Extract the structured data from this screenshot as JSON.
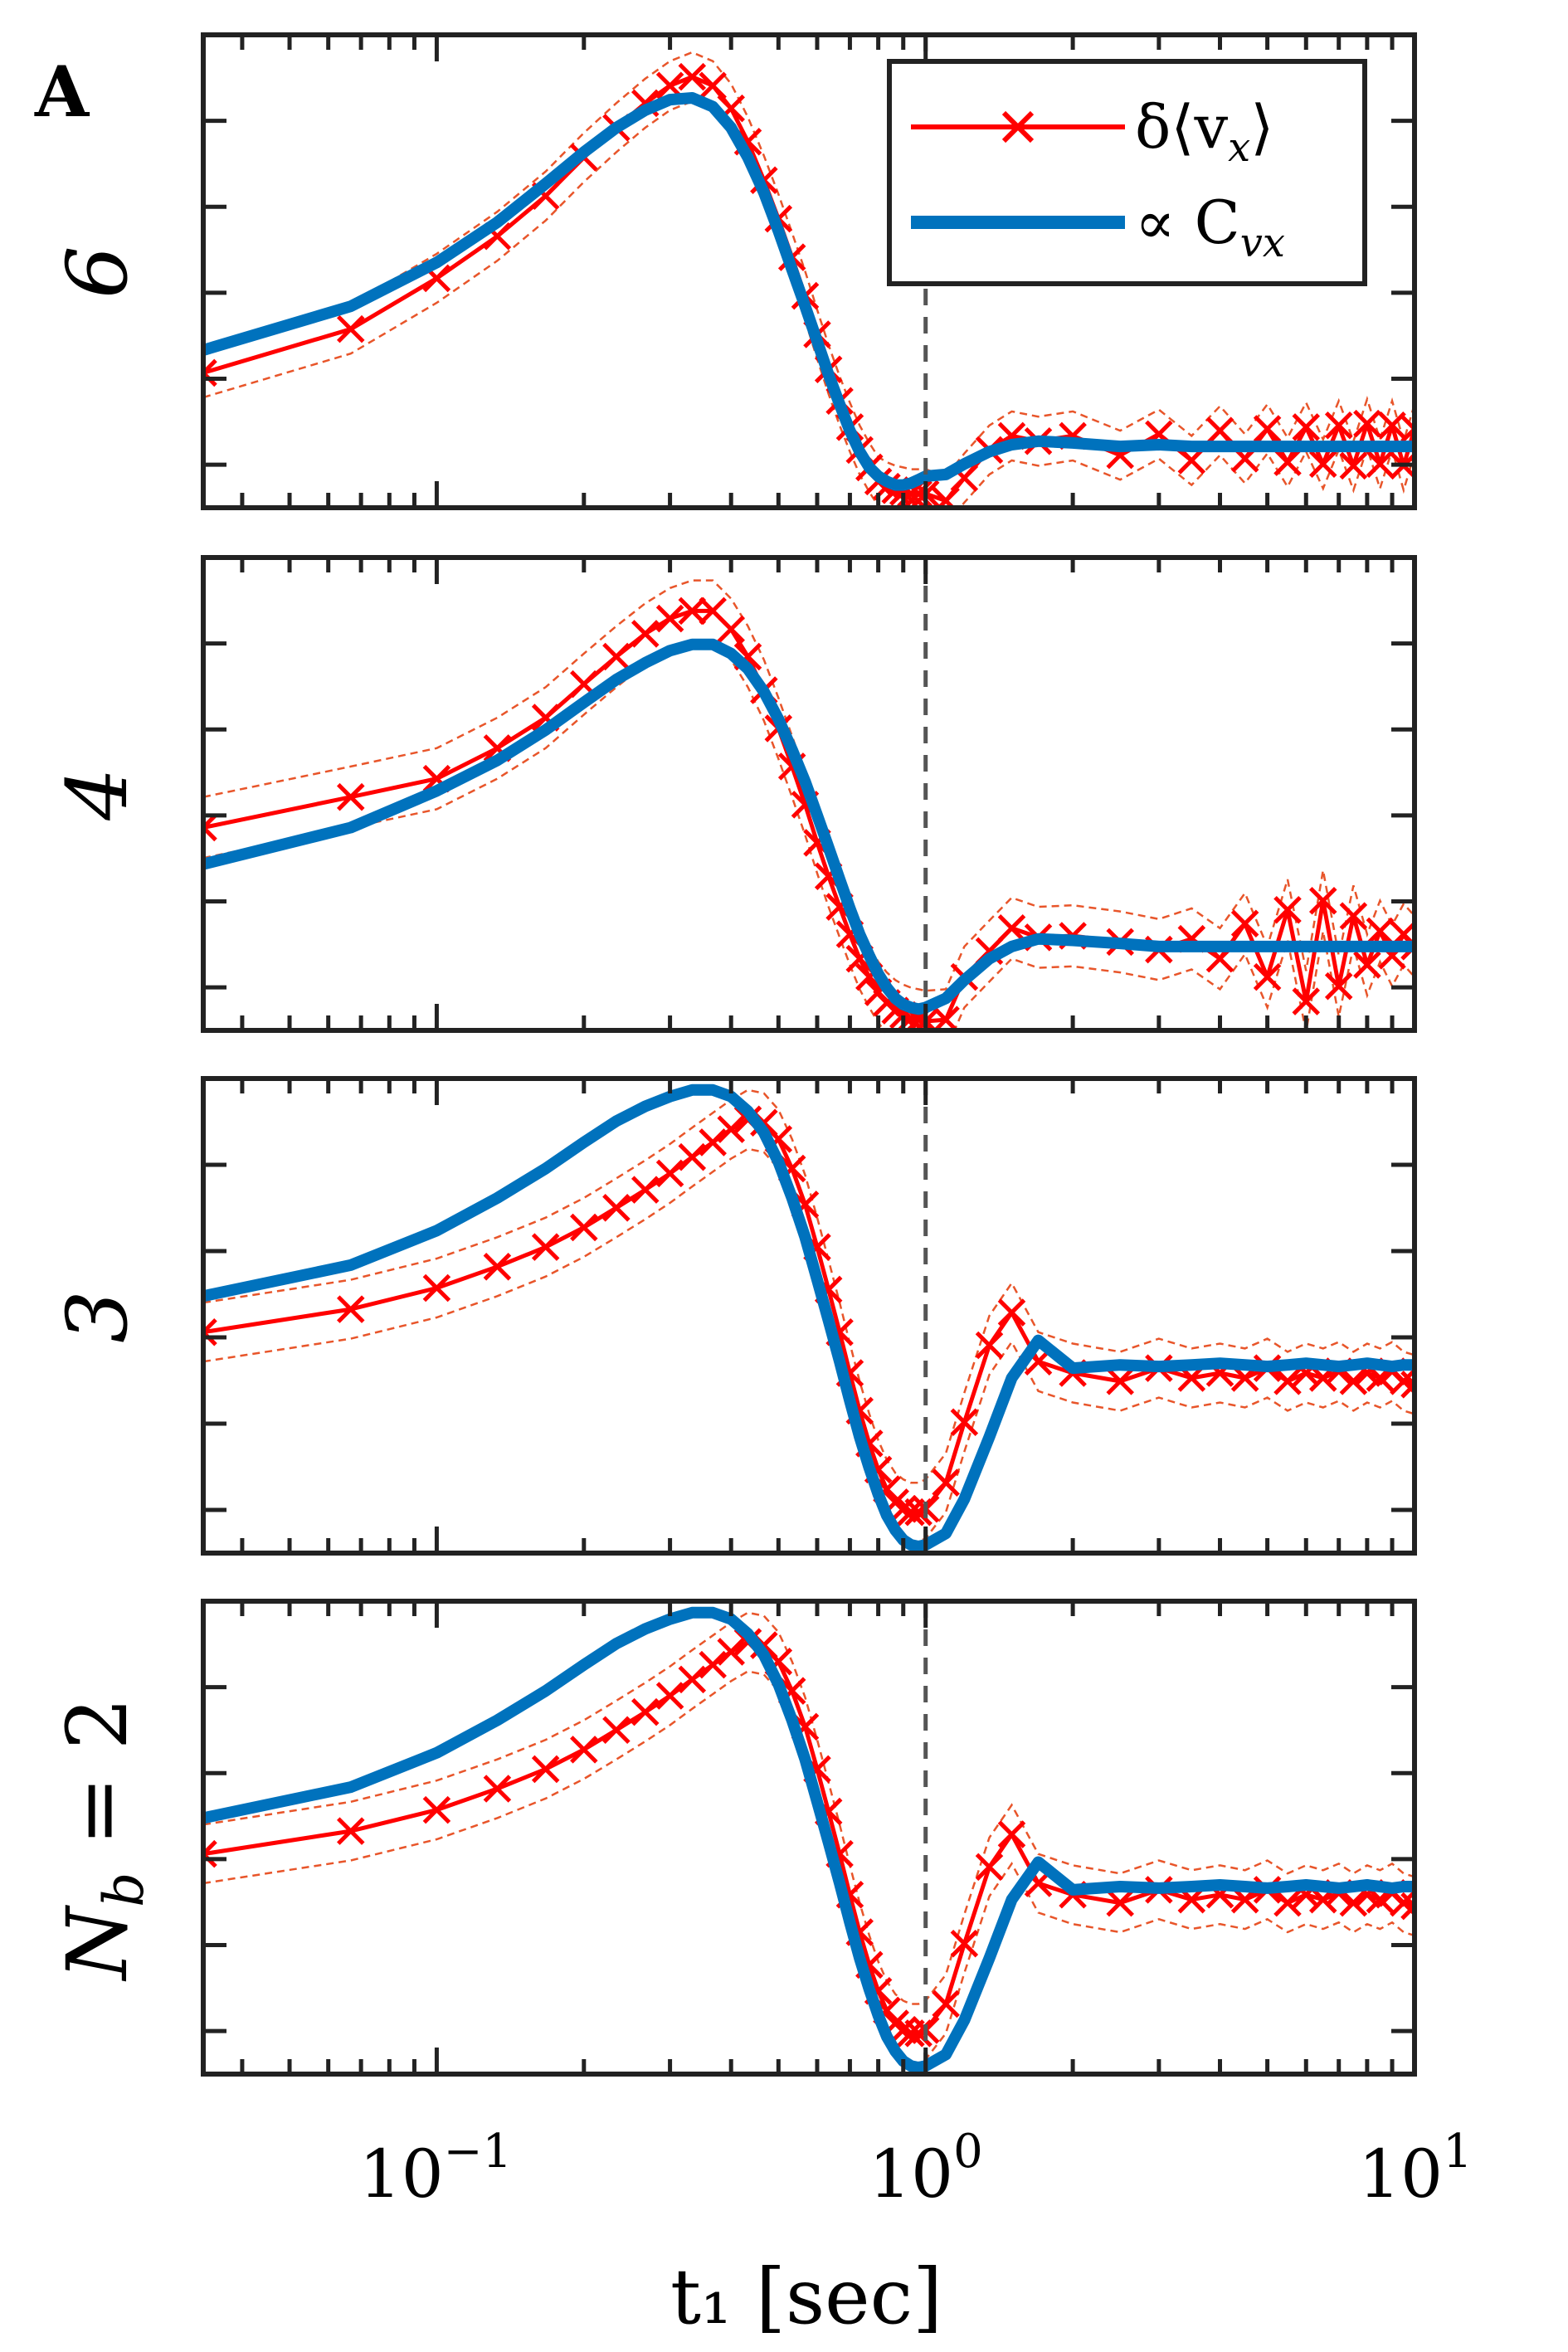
{
  "figure": {
    "panel_label": "A"
  },
  "chart_data": {
    "type": "line",
    "title": "",
    "xscale": "log",
    "xlim": [
      0.0333,
      10
    ],
    "xlabel": "t₁ [sec]",
    "xticks": [
      {
        "value": 0.1,
        "base": "10",
        "exp": "−1"
      },
      {
        "value": 1,
        "base": "10",
        "exp": "0"
      },
      {
        "value": 10,
        "base": "10",
        "exp": "1"
      }
    ],
    "vline_x": 1,
    "legend": {
      "location": "top-right of top panel",
      "entries": [
        {
          "name": "δ⟨v_x⟩",
          "sym": "δ⟨v",
          "sub": "x",
          "tail": "⟩",
          "color": "#ff0000",
          "marker": "x"
        },
        {
          "name": "∝ C_vx",
          "sym": "∝ C",
          "sub": "vx",
          "tail": "",
          "color": "#0072bd",
          "marker": ""
        }
      ]
    },
    "colors": {
      "measured": "#ff0000",
      "correlation": "#0072bd",
      "band": "#e8552a",
      "vline": "#555555"
    },
    "shared_x": [
      0.0333,
      0.0667,
      0.1,
      0.133,
      0.167,
      0.2,
      0.233,
      0.267,
      0.3,
      0.333,
      0.367,
      0.4,
      0.433,
      0.467,
      0.5,
      0.533,
      0.567,
      0.6,
      0.633,
      0.667,
      0.7,
      0.733,
      0.767,
      0.8,
      0.833,
      0.867,
      0.9,
      0.933,
      0.967,
      1.0,
      1.1,
      1.2,
      1.35,
      1.5,
      1.7,
      2.0,
      2.5,
      3.0,
      3.5,
      4.0,
      4.5,
      5.0,
      5.5,
      6.0,
      6.5,
      7.0,
      7.5,
      8.0,
      8.5,
      9.0,
      9.5,
      10.0
    ],
    "series": [
      {
        "name": "6",
        "label_prefix": "",
        "label_var": "6",
        "label_sub": "",
        "label_eq": "",
        "ylim": [
          -0.35,
          2.35
        ],
        "measured": [
          0.42,
          0.67,
          0.96,
          1.2,
          1.43,
          1.65,
          1.82,
          1.96,
          2.06,
          2.11,
          2.06,
          1.93,
          1.74,
          1.52,
          1.3,
          1.08,
          0.86,
          0.64,
          0.44,
          0.26,
          0.11,
          -0.02,
          -0.12,
          -0.2,
          -0.23,
          -0.25,
          -0.26,
          -0.27,
          -0.27,
          -0.27,
          -0.31,
          -0.18,
          -0.02,
          0.06,
          0.03,
          0.06,
          -0.05,
          0.07,
          -0.08,
          0.09,
          -0.07,
          0.1,
          -0.09,
          0.11,
          -0.1,
          0.12,
          -0.11,
          0.13,
          -0.1,
          0.12,
          -0.11,
          0.1
        ],
        "correlation": [
          0.55,
          0.8,
          1.05,
          1.28,
          1.5,
          1.68,
          1.82,
          1.92,
          1.98,
          1.99,
          1.94,
          1.82,
          1.65,
          1.45,
          1.23,
          1.01,
          0.8,
          0.6,
          0.41,
          0.24,
          0.09,
          -0.03,
          -0.12,
          -0.17,
          -0.2,
          -0.22,
          -0.22,
          -0.21,
          -0.19,
          -0.17,
          -0.16,
          -0.1,
          -0.03,
          0.01,
          0.03,
          0.02,
          0.0,
          0.01,
          0.0,
          0.0,
          0.0,
          0.0,
          0.0,
          0.0,
          0.0,
          0.0,
          0.0,
          0.0,
          0.0,
          0.0,
          0.0,
          0.0
        ],
        "band_halfwidth": 0.14
      },
      {
        "name": "4",
        "label_prefix": "",
        "label_var": "4",
        "label_sub": "",
        "label_eq": "",
        "ylim": [
          -0.55,
          2.55
        ],
        "measured": [
          0.78,
          0.98,
          1.1,
          1.3,
          1.5,
          1.72,
          1.9,
          2.05,
          2.15,
          2.2,
          2.2,
          2.08,
          1.9,
          1.68,
          1.43,
          1.18,
          0.93,
          0.68,
          0.46,
          0.26,
          0.08,
          -0.08,
          -0.2,
          -0.3,
          -0.37,
          -0.42,
          -0.45,
          -0.47,
          -0.48,
          -0.49,
          -0.48,
          -0.2,
          -0.03,
          0.12,
          0.06,
          0.07,
          0.03,
          -0.02,
          0.05,
          -0.08,
          0.15,
          -0.2,
          0.24,
          -0.36,
          0.3,
          -0.26,
          0.2,
          -0.12,
          0.1,
          -0.06,
          0.08,
          0.0
        ],
        "correlation": [
          0.54,
          0.78,
          1.02,
          1.22,
          1.42,
          1.6,
          1.75,
          1.86,
          1.94,
          1.98,
          1.98,
          1.92,
          1.82,
          1.67,
          1.49,
          1.29,
          1.08,
          0.86,
          0.65,
          0.44,
          0.25,
          0.08,
          -0.06,
          -0.18,
          -0.27,
          -0.34,
          -0.38,
          -0.4,
          -0.41,
          -0.4,
          -0.34,
          -0.22,
          -0.08,
          0.0,
          0.05,
          0.04,
          0.02,
          0.0,
          0.0,
          0.0,
          0.0,
          0.0,
          0.0,
          0.0,
          0.0,
          0.0,
          0.0,
          0.0,
          0.0,
          0.0,
          0.0,
          0.0
        ],
        "band_halfwidth": 0.2
      },
      {
        "name": "3",
        "label_prefix": "",
        "label_var": "3",
        "label_sub": "",
        "label_eq": "",
        "ylim": [
          -1.15,
          1.75
        ],
        "measured": [
          0.2,
          0.34,
          0.47,
          0.6,
          0.72,
          0.84,
          0.96,
          1.07,
          1.17,
          1.27,
          1.36,
          1.44,
          1.5,
          1.48,
          1.38,
          1.2,
          0.98,
          0.72,
          0.46,
          0.2,
          -0.05,
          -0.28,
          -0.48,
          -0.64,
          -0.76,
          -0.84,
          -0.88,
          -0.9,
          -0.9,
          -0.88,
          -0.72,
          -0.35,
          0.12,
          0.32,
          0.02,
          -0.05,
          -0.1,
          -0.02,
          -0.08,
          -0.05,
          -0.08,
          -0.02,
          -0.1,
          -0.05,
          -0.08,
          -0.04,
          -0.1,
          -0.05,
          -0.08,
          -0.04,
          -0.1,
          -0.12
        ],
        "correlation": [
          0.42,
          0.61,
          0.82,
          1.02,
          1.2,
          1.36,
          1.49,
          1.58,
          1.64,
          1.68,
          1.68,
          1.64,
          1.55,
          1.42,
          1.24,
          1.02,
          0.78,
          0.52,
          0.27,
          0.02,
          -0.22,
          -0.44,
          -0.63,
          -0.79,
          -0.92,
          -1.01,
          -1.07,
          -1.1,
          -1.11,
          -1.1,
          -1.03,
          -0.82,
          -0.44,
          -0.08,
          0.15,
          -0.02,
          0.0,
          -0.01,
          0.0,
          0.01,
          0.0,
          -0.01,
          0.0,
          0.01,
          0.0,
          -0.01,
          0.0,
          0.01,
          0.0,
          -0.01,
          0.0,
          0.0
        ],
        "band_halfwidth": 0.18
      },
      {
        "name": "N_b = 2",
        "label_prefix": "",
        "label_var": "N",
        "label_sub": "b",
        "label_eq": " = 2",
        "ylim": [
          -1.15,
          1.75
        ],
        "measured": [
          0.2,
          0.34,
          0.47,
          0.6,
          0.72,
          0.84,
          0.96,
          1.07,
          1.17,
          1.27,
          1.36,
          1.44,
          1.5,
          1.48,
          1.38,
          1.2,
          0.98,
          0.72,
          0.46,
          0.2,
          -0.05,
          -0.28,
          -0.48,
          -0.64,
          -0.76,
          -0.84,
          -0.88,
          -0.9,
          -0.9,
          -0.88,
          -0.72,
          -0.35,
          0.12,
          0.32,
          0.02,
          -0.05,
          -0.1,
          -0.02,
          -0.08,
          -0.05,
          -0.08,
          -0.02,
          -0.1,
          -0.05,
          -0.08,
          -0.04,
          -0.1,
          -0.05,
          -0.08,
          -0.04,
          -0.1,
          -0.12
        ],
        "correlation": [
          0.42,
          0.61,
          0.82,
          1.02,
          1.2,
          1.36,
          1.49,
          1.58,
          1.64,
          1.68,
          1.68,
          1.64,
          1.55,
          1.42,
          1.24,
          1.02,
          0.78,
          0.52,
          0.27,
          0.02,
          -0.22,
          -0.44,
          -0.63,
          -0.79,
          -0.92,
          -1.01,
          -1.07,
          -1.1,
          -1.11,
          -1.1,
          -1.03,
          -0.82,
          -0.44,
          -0.08,
          0.15,
          -0.02,
          0.0,
          -0.01,
          0.0,
          0.01,
          0.0,
          -0.01,
          0.0,
          0.01,
          0.0,
          -0.01,
          0.0,
          0.01,
          0.0,
          -0.01,
          0.0,
          0.0
        ],
        "band_halfwidth": 0.18
      }
    ]
  }
}
